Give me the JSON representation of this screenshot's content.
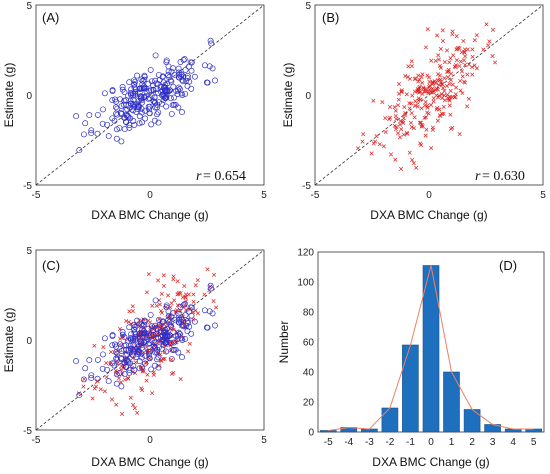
{
  "figure": {
    "background": "#ffffff"
  },
  "chart_data": [
    {
      "type": "scatter",
      "panel_label": "(A)",
      "xlabel": "DXA BMC Change (g)",
      "ylabel": "Estimate (g)",
      "xlim": [
        -5,
        5
      ],
      "ylim": [
        -5,
        5
      ],
      "xticks": [
        "-5",
        "0",
        "5"
      ],
      "yticks": [
        "-5",
        "0",
        "5"
      ],
      "identity_line": true,
      "annotation": {
        "symbol": "r",
        "text": " = 0.654"
      },
      "series": [
        {
          "marker": "circle",
          "color": "#3030c8",
          "seed": 11,
          "n": 260,
          "r": 0.654,
          "sx": 1.15,
          "sy": 1.0
        }
      ]
    },
    {
      "type": "scatter",
      "panel_label": "(B)",
      "xlabel": "DXA BMC Change (g)",
      "ylabel": "Estimate (g)",
      "xlim": [
        -5,
        5
      ],
      "ylim": [
        -5,
        5
      ],
      "xticks": [
        "-5",
        "0",
        "5"
      ],
      "yticks": [
        "-5",
        "0",
        "5"
      ],
      "identity_line": true,
      "annotation": {
        "symbol": "r",
        "text": " = 0.630"
      },
      "series": [
        {
          "marker": "x",
          "color": "#e02020",
          "seed": 23,
          "n": 260,
          "r": 0.63,
          "sx": 1.15,
          "sy": 1.55
        }
      ]
    },
    {
      "type": "scatter",
      "panel_label": "(C)",
      "xlabel": "DXA BMC Change (g)",
      "ylabel": "Estimate (g)",
      "xlim": [
        -5,
        5
      ],
      "ylim": [
        -5,
        5
      ],
      "xticks": [
        "-5",
        "0",
        "5"
      ],
      "yticks": [
        "-5",
        "0",
        "5"
      ],
      "identity_line": true,
      "series": [
        {
          "marker": "x",
          "color": "#e02020",
          "seed": 23,
          "n": 260,
          "r": 0.63,
          "sx": 1.15,
          "sy": 1.55
        },
        {
          "marker": "circle",
          "color": "#3030c8",
          "seed": 11,
          "n": 260,
          "r": 0.654,
          "sx": 1.15,
          "sy": 1.0
        }
      ]
    },
    {
      "type": "bar",
      "panel_label": "(D)",
      "xlabel": "DXA BMC Change (g)",
      "ylabel": "Number",
      "categories": [
        "-5",
        "-4",
        "-3",
        "-2",
        "-1",
        "0",
        "1",
        "2",
        "3",
        "4",
        "5"
      ],
      "values": [
        1,
        3,
        2,
        16,
        58,
        111,
        40,
        15,
        5,
        2,
        2
      ],
      "ylim": [
        0,
        120
      ],
      "yticks": [
        "0",
        "20",
        "40",
        "60",
        "80",
        "100",
        "120"
      ],
      "bar_color": "#1f6fbf",
      "line_color": "#f08060"
    }
  ]
}
